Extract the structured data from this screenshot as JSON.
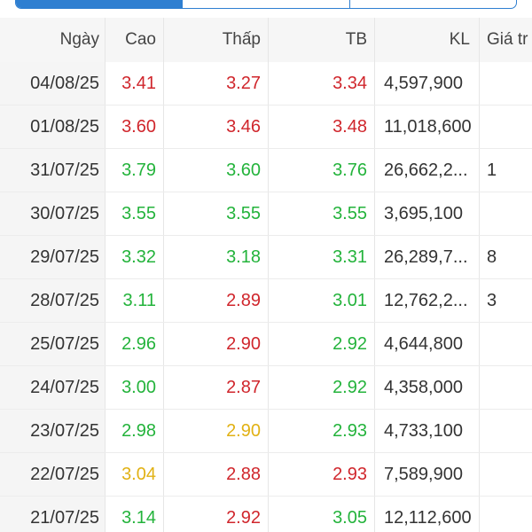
{
  "colors": {
    "accent": "#2f7fd1",
    "up": "#23b33b",
    "down": "#d0262c",
    "reference": "#e1b114"
  },
  "tabs": [
    {
      "label": "",
      "active": true
    },
    {
      "label": "",
      "active": false
    },
    {
      "label": "",
      "active": false
    }
  ],
  "columns": {
    "date": "Ngày",
    "high": "Cao",
    "low": "Thấp",
    "avg": "TB",
    "volume": "KL",
    "price": "Giá tr"
  },
  "rows": [
    {
      "date": "04/08/25",
      "high": "3.41",
      "high_color": "red",
      "low": "3.27",
      "low_color": "red",
      "avg": "3.34",
      "avg_color": "red",
      "volume": "4,597,900",
      "extra": ""
    },
    {
      "date": "01/08/25",
      "high": "3.60",
      "high_color": "red",
      "low": "3.46",
      "low_color": "red",
      "avg": "3.48",
      "avg_color": "red",
      "volume": "11,018,600",
      "extra": ""
    },
    {
      "date": "31/07/25",
      "high": "3.79",
      "high_color": "green",
      "low": "3.60",
      "low_color": "green",
      "avg": "3.76",
      "avg_color": "green",
      "volume": "26,662,2...",
      "extra": "1"
    },
    {
      "date": "30/07/25",
      "high": "3.55",
      "high_color": "green",
      "low": "3.55",
      "low_color": "green",
      "avg": "3.55",
      "avg_color": "green",
      "volume": "3,695,100",
      "extra": ""
    },
    {
      "date": "29/07/25",
      "high": "3.32",
      "high_color": "green",
      "low": "3.18",
      "low_color": "green",
      "avg": "3.31",
      "avg_color": "green",
      "volume": "26,289,7...",
      "extra": "8"
    },
    {
      "date": "28/07/25",
      "high": "3.11",
      "high_color": "green",
      "low": "2.89",
      "low_color": "red",
      "avg": "3.01",
      "avg_color": "green",
      "volume": "12,762,2...",
      "extra": "3"
    },
    {
      "date": "25/07/25",
      "high": "2.96",
      "high_color": "green",
      "low": "2.90",
      "low_color": "red",
      "avg": "2.92",
      "avg_color": "green",
      "volume": "4,644,800",
      "extra": ""
    },
    {
      "date": "24/07/25",
      "high": "3.00",
      "high_color": "green",
      "low": "2.87",
      "low_color": "red",
      "avg": "2.92",
      "avg_color": "green",
      "volume": "4,358,000",
      "extra": ""
    },
    {
      "date": "23/07/25",
      "high": "2.98",
      "high_color": "green",
      "low": "2.90",
      "low_color": "yellow",
      "avg": "2.93",
      "avg_color": "green",
      "volume": "4,733,100",
      "extra": ""
    },
    {
      "date": "22/07/25",
      "high": "3.04",
      "high_color": "yellow",
      "low": "2.88",
      "low_color": "red",
      "avg": "2.93",
      "avg_color": "red",
      "volume": "7,589,900",
      "extra": ""
    },
    {
      "date": "21/07/25",
      "high": "3.14",
      "high_color": "green",
      "low": "2.92",
      "low_color": "red",
      "avg": "3.05",
      "avg_color": "green",
      "volume": "12,112,600",
      "extra": ""
    }
  ]
}
